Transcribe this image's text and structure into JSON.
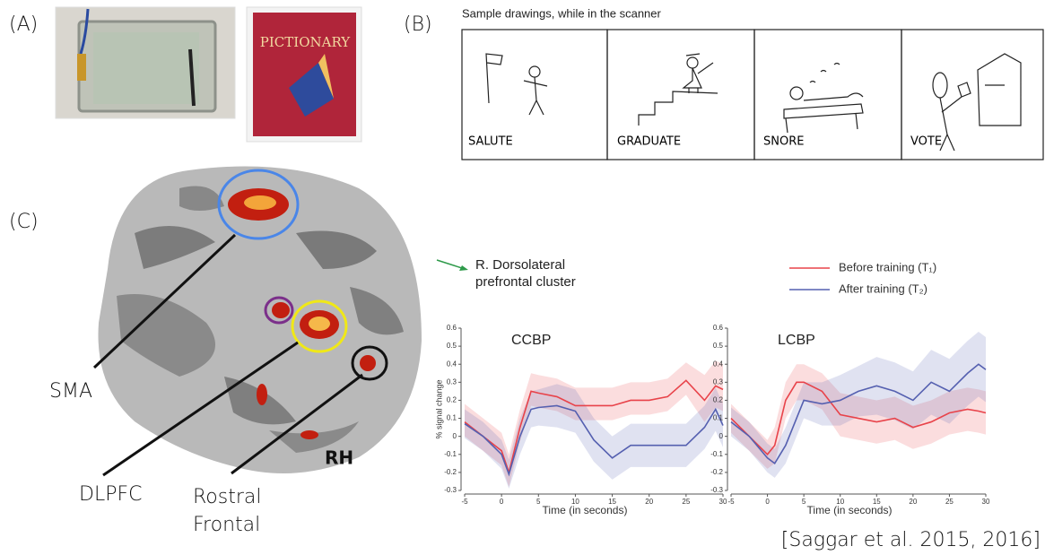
{
  "panel_labels": [
    "(A)",
    "(B)",
    "(C)"
  ],
  "panel_a": {
    "box_text": "PICTIONARY"
  },
  "panel_b": {
    "title": "Sample drawings, while in the scanner",
    "drawings": [
      "SALUTE",
      "GRADUATE",
      "SNORE",
      "VOTE"
    ]
  },
  "panel_c": {
    "sma": "SMA",
    "dlpfc": "DLPFC",
    "rostral_frontal": [
      "Rostral",
      "Frontal"
    ],
    "hemisphere": "RH",
    "cluster_label": [
      "R. Dorsolateral",
      "prefrontal cluster"
    ]
  },
  "citation": "[Saggar et al. 2015, 2016]",
  "chart_data": [
    {
      "type": "line",
      "title": "CCBP",
      "xlabel": "Time (in seconds)",
      "ylabel": "% signal change",
      "x": [
        -5,
        -2.5,
        0,
        1,
        2.5,
        4,
        5,
        7.5,
        10,
        12.5,
        15,
        17.5,
        20,
        22.5,
        25,
        27.5,
        29,
        30
      ],
      "xlim": [
        -5,
        30
      ],
      "ylim": [
        -0.3,
        0.6
      ],
      "xticks": [
        -5,
        0,
        5,
        10,
        15,
        20,
        25,
        30
      ],
      "yticks": [
        -0.3,
        -0.2,
        -0.1,
        0,
        0.1,
        0.2,
        0.3,
        0.4,
        0.5,
        0.6
      ],
      "series": [
        {
          "name": "Before training (T₁)",
          "color": "#e8434a",
          "values": [
            0.08,
            0.0,
            -0.08,
            -0.2,
            0.05,
            0.25,
            0.24,
            0.22,
            0.17,
            0.17,
            0.17,
            0.2,
            0.2,
            0.22,
            0.31,
            0.2,
            0.28,
            0.26
          ],
          "lower": [
            0.0,
            -0.08,
            -0.16,
            -0.28,
            -0.03,
            0.17,
            0.16,
            0.14,
            0.09,
            0.09,
            0.09,
            0.12,
            0.12,
            0.14,
            0.23,
            0.08,
            0.16,
            0.14
          ],
          "upper": [
            0.18,
            0.1,
            0.02,
            -0.1,
            0.15,
            0.35,
            0.34,
            0.32,
            0.27,
            0.27,
            0.27,
            0.3,
            0.3,
            0.32,
            0.41,
            0.34,
            0.42,
            0.4
          ]
        },
        {
          "name": "After training (T₂)",
          "color": "#5560b0",
          "values": [
            0.07,
            0.0,
            -0.1,
            -0.21,
            0.0,
            0.15,
            0.16,
            0.17,
            0.14,
            -0.02,
            -0.12,
            -0.05,
            -0.05,
            -0.05,
            -0.05,
            0.05,
            0.15,
            0.06
          ],
          "lower": [
            -0.01,
            -0.08,
            -0.18,
            -0.29,
            -0.1,
            0.05,
            0.06,
            0.05,
            0.02,
            -0.14,
            -0.24,
            -0.17,
            -0.17,
            -0.17,
            -0.17,
            -0.07,
            0.03,
            -0.06
          ],
          "upper": [
            0.15,
            0.08,
            -0.02,
            -0.13,
            0.1,
            0.25,
            0.26,
            0.29,
            0.26,
            0.1,
            0.0,
            0.07,
            0.07,
            0.07,
            0.07,
            0.17,
            0.27,
            0.18
          ]
        }
      ]
    },
    {
      "type": "line",
      "title": "LCBP",
      "xlabel": "Time (in seconds)",
      "x": [
        -5,
        -2.5,
        0,
        1,
        2.5,
        4,
        5,
        7.5,
        10,
        12.5,
        15,
        17.5,
        20,
        22.5,
        25,
        27.5,
        29,
        30
      ],
      "xlim": [
        -5,
        30
      ],
      "ylim": [
        -0.3,
        0.6
      ],
      "xticks": [
        -5,
        0,
        5,
        10,
        15,
        20,
        25,
        30
      ],
      "yticks": [
        -0.3,
        -0.2,
        -0.1,
        0,
        0.1,
        0.2,
        0.3,
        0.4,
        0.5,
        0.6
      ],
      "series": [
        {
          "color": "#e8434a",
          "values": [
            0.1,
            0.0,
            -0.1,
            -0.05,
            0.2,
            0.3,
            0.3,
            0.25,
            0.12,
            0.1,
            0.08,
            0.1,
            0.05,
            0.08,
            0.13,
            0.15,
            0.14,
            0.13
          ],
          "lower": [
            0.02,
            -0.08,
            -0.18,
            -0.15,
            0.1,
            0.2,
            0.2,
            0.15,
            0.0,
            -0.02,
            -0.04,
            -0.02,
            -0.07,
            -0.04,
            0.01,
            0.03,
            0.02,
            0.01
          ],
          "upper": [
            0.18,
            0.08,
            -0.02,
            0.05,
            0.3,
            0.4,
            0.4,
            0.35,
            0.24,
            0.22,
            0.2,
            0.22,
            0.17,
            0.2,
            0.25,
            0.27,
            0.26,
            0.25
          ]
        },
        {
          "color": "#5560b0",
          "values": [
            0.08,
            0.0,
            -0.12,
            -0.15,
            -0.05,
            0.1,
            0.2,
            0.18,
            0.2,
            0.25,
            0.28,
            0.25,
            0.2,
            0.3,
            0.25,
            0.35,
            0.4,
            0.37
          ],
          "lower": [
            0.0,
            -0.08,
            -0.2,
            -0.23,
            -0.15,
            0.0,
            0.1,
            0.06,
            0.06,
            0.11,
            0.12,
            0.09,
            0.04,
            0.12,
            0.07,
            0.17,
            0.22,
            0.19
          ],
          "upper": [
            0.16,
            0.08,
            -0.04,
            -0.07,
            0.05,
            0.2,
            0.3,
            0.3,
            0.34,
            0.39,
            0.44,
            0.41,
            0.36,
            0.48,
            0.43,
            0.53,
            0.58,
            0.55
          ]
        }
      ]
    }
  ]
}
